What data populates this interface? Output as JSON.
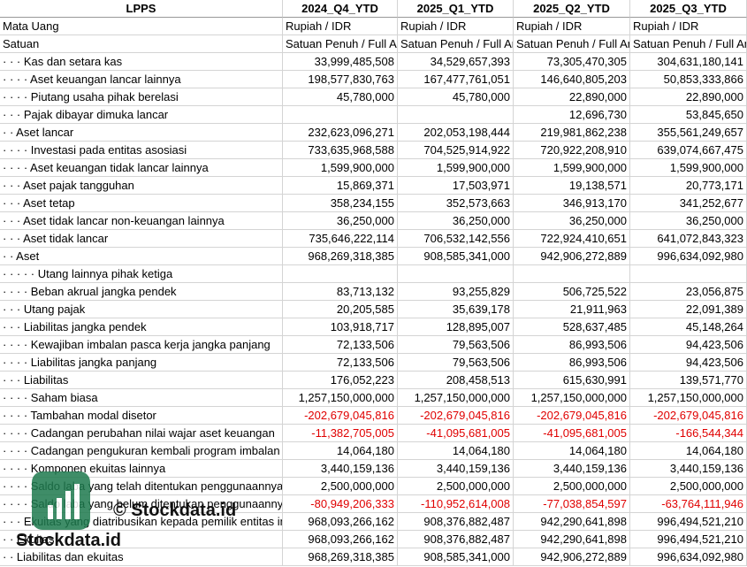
{
  "table": {
    "header": [
      "LPPS",
      "2024_Q4_YTD",
      "2025_Q1_YTD",
      "2025_Q2_YTD",
      "2025_Q3_YTD"
    ],
    "rows": [
      [
        "Mata Uang",
        "Rupiah / IDR",
        "Rupiah / IDR",
        "Rupiah / IDR",
        "Rupiah / IDR"
      ],
      [
        "Satuan",
        "Satuan Penuh / Full Amount",
        "Satuan Penuh / Full Amount",
        "Satuan Penuh / Full Amount",
        "Satuan Penuh / Full Amount"
      ],
      [
        "· · · Kas dan setara kas",
        "33,999,485,508",
        "34,529,657,393",
        "73,305,470,305",
        "304,631,180,141"
      ],
      [
        "· · · · Aset keuangan lancar lainnya",
        "198,577,830,763",
        "167,477,761,051",
        "146,640,805,203",
        "50,853,333,866"
      ],
      [
        "· · · · Piutang usaha pihak berelasi",
        "45,780,000",
        "45,780,000",
        "22,890,000",
        "22,890,000"
      ],
      [
        "· · · Pajak dibayar dimuka lancar",
        null,
        null,
        "12,696,730",
        "53,845,650"
      ],
      [
        "· · Aset lancar",
        "232,623,096,271",
        "202,053,198,444",
        "219,981,862,238",
        "355,561,249,657"
      ],
      [
        "· · · · Investasi pada entitas asosiasi",
        "733,635,968,588",
        "704,525,914,922",
        "720,922,208,910",
        "639,074,667,475"
      ],
      [
        "· · · · Aset keuangan tidak lancar lainnya",
        "1,599,900,000",
        "1,599,900,000",
        "1,599,900,000",
        "1,599,900,000"
      ],
      [
        "· · · Aset pajak tangguhan",
        "15,869,371",
        "17,503,971",
        "19,138,571",
        "20,773,171"
      ],
      [
        "· · · Aset tetap",
        "358,234,155",
        "352,573,663",
        "346,913,170",
        "341,252,677"
      ],
      [
        "· · · Aset tidak lancar non-keuangan lainnya",
        "36,250,000",
        "36,250,000",
        "36,250,000",
        "36,250,000"
      ],
      [
        "· · · Aset tidak lancar",
        "735,646,222,114",
        "706,532,142,556",
        "722,924,410,651",
        "641,072,843,323"
      ],
      [
        "· · Aset",
        "968,269,318,385",
        "908,585,341,000",
        "942,906,272,889",
        "996,634,092,980"
      ],
      [
        "· · · · · Utang lainnya pihak ketiga",
        null,
        null,
        null,
        null
      ],
      [
        "· · · · Beban akrual jangka pendek",
        "83,713,132",
        "93,255,829",
        "506,725,522",
        "23,056,875"
      ],
      [
        "· · · Utang pajak",
        "20,205,585",
        "35,639,178",
        "21,911,963",
        "22,091,389"
      ],
      [
        "· · · Liabilitas jangka pendek",
        "103,918,717",
        "128,895,007",
        "528,637,485",
        "45,148,264"
      ],
      [
        "· · · · Kewajiban imbalan pasca kerja jangka panjang",
        "72,133,506",
        "79,563,506",
        "86,993,506",
        "94,423,506"
      ],
      [
        "· · · · Liabilitas jangka panjang",
        "72,133,506",
        "79,563,506",
        "86,993,506",
        "94,423,506"
      ],
      [
        "· · · Liabilitas",
        "176,052,223",
        "208,458,513",
        "615,630,991",
        "139,571,770"
      ],
      [
        "· · · · Saham biasa",
        "1,257,150,000,000",
        "1,257,150,000,000",
        "1,257,150,000,000",
        "1,257,150,000,000"
      ],
      [
        "· · · · Tambahan modal disetor",
        "-202,679,045,816",
        "-202,679,045,816",
        "-202,679,045,816",
        "-202,679,045,816"
      ],
      [
        "· · · · Cadangan perubahan nilai wajar aset keuangan",
        "-11,382,705,005",
        "-41,095,681,005",
        "-41,095,681,005",
        "-166,544,344"
      ],
      [
        "· · · · Cadangan pengukuran kembali program imbalan pasti",
        "14,064,180",
        "14,064,180",
        "14,064,180",
        "14,064,180"
      ],
      [
        "· · · · Komponen ekuitas lainnya",
        "3,440,159,136",
        "3,440,159,136",
        "3,440,159,136",
        "3,440,159,136"
      ],
      [
        "· · · · Saldo laba yang telah ditentukan penggunaannya",
        "2,500,000,000",
        "2,500,000,000",
        "2,500,000,000",
        "2,500,000,000"
      ],
      [
        "· · · · Saldo laba yang belum ditentukan penggunaannya",
        "-80,949,206,333",
        "-110,952,614,008",
        "-77,038,854,597",
        "-63,764,111,946"
      ],
      [
        "· · · Ekuitas yang diatribusikan kepada pemilik entitas induk",
        "968,093,266,162",
        "908,376,882,487",
        "942,290,641,898",
        "996,494,521,210"
      ],
      [
        "· · Ekuitas",
        "968,093,266,162",
        "908,376,882,487",
        "942,290,641,898",
        "996,494,521,210"
      ],
      [
        "· · Liabilitas dan ekuitas",
        "968,269,318,385",
        "908,585,341,000",
        "942,906,272,889",
        "996,634,092,980"
      ]
    ]
  },
  "watermark": {
    "caption": "© Stockdata.id",
    "brand": "Stockdata.id"
  }
}
